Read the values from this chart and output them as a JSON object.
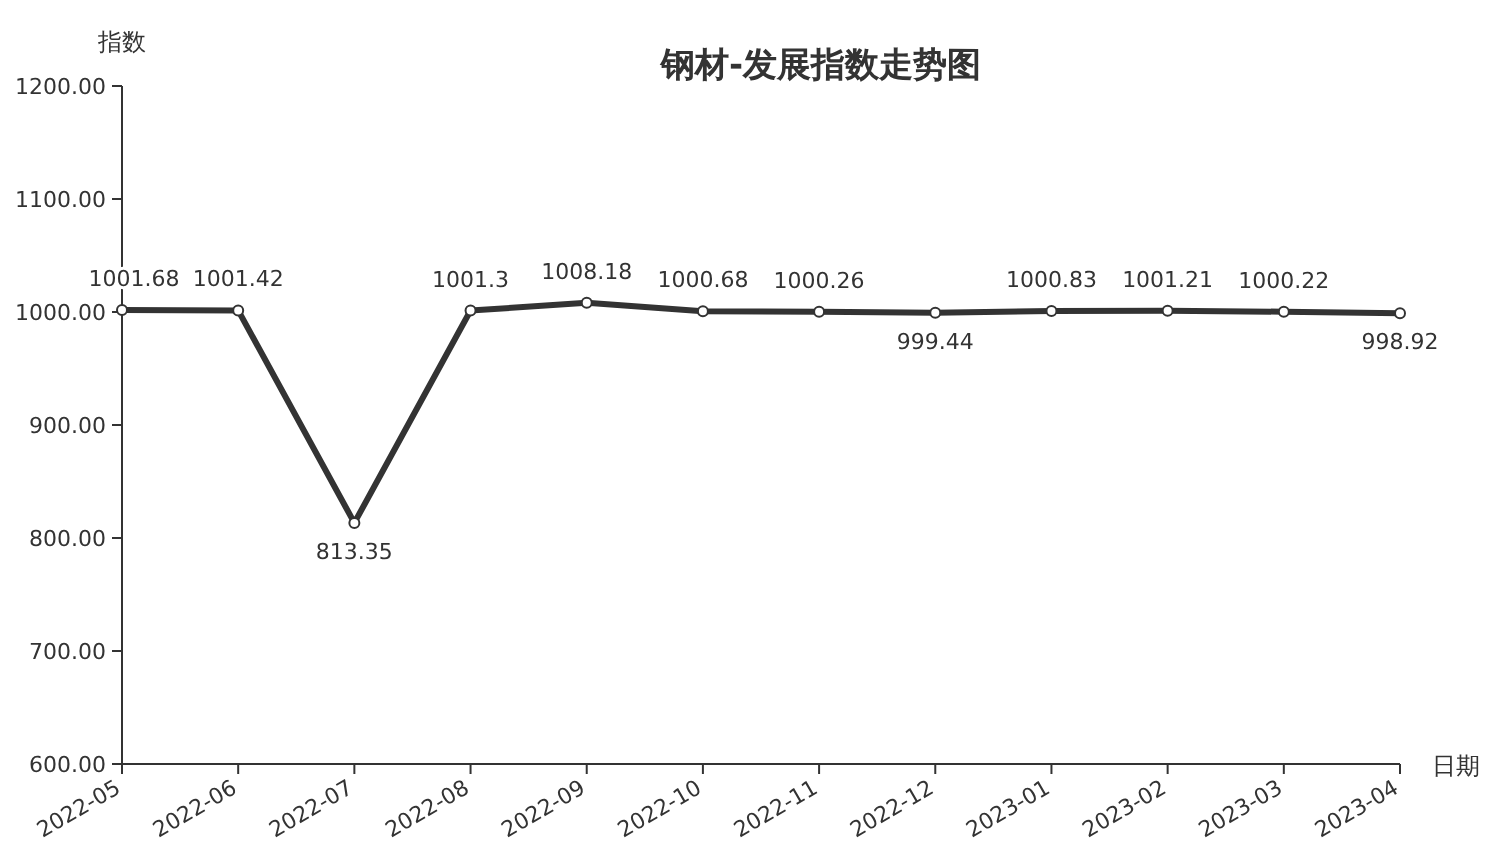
{
  "chart_data": {
    "type": "line",
    "title": "钢材-发展指数走势图",
    "xlabel": "日期",
    "ylabel": "指数",
    "categories": [
      "2022-05",
      "2022-06",
      "2022-07",
      "2022-08",
      "2022-09",
      "2022-10",
      "2022-11",
      "2022-12",
      "2023-01",
      "2023-02",
      "2023-03",
      "2023-04"
    ],
    "values": [
      1001.68,
      1001.42,
      813.35,
      1001.3,
      1008.18,
      1000.68,
      1000.26,
      999.44,
      1000.83,
      1001.21,
      1000.22,
      998.92
    ],
    "color": "#333333",
    "marker": "circle",
    "data_labels": true,
    "grid": false,
    "ylim": [
      600,
      1200
    ],
    "yticks": [
      {
        "value": 600,
        "label": "600.00"
      },
      {
        "value": 700,
        "label": "700.00"
      },
      {
        "value": 800,
        "label": "800.00"
      },
      {
        "value": 900,
        "label": "900.00"
      },
      {
        "value": 1000,
        "label": "1000.00"
      },
      {
        "value": 1100,
        "label": "1100.00"
      },
      {
        "value": 1200,
        "label": "1200.00"
      }
    ]
  }
}
